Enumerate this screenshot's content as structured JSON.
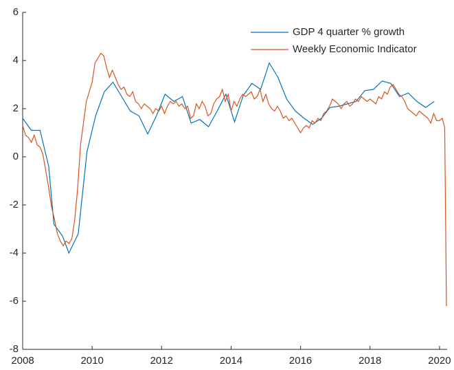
{
  "chart_data": {
    "type": "line",
    "xlim": [
      2008,
      2020.22
    ],
    "xticks": [
      2008,
      2010,
      2012,
      2014,
      2016,
      2018,
      2020
    ],
    "ylim": [
      -8,
      6
    ],
    "yticks": [
      -8,
      -6,
      -4,
      -2,
      0,
      2,
      4,
      6
    ],
    "legend": "upper right",
    "series": [
      {
        "name": "GDP 4 quarter % growth",
        "color": "#0072bd",
        "x": [
          2008,
          2008.25,
          2008.5,
          2008.75,
          2008.9,
          2009.15,
          2009.33,
          2009.6,
          2009.85,
          2010.1,
          2010.35,
          2010.6,
          2010.85,
          2011.1,
          2011.35,
          2011.6,
          2011.85,
          2012.1,
          2012.35,
          2012.6,
          2012.85,
          2013.1,
          2013.35,
          2013.6,
          2013.85,
          2014.1,
          2014.35,
          2014.6,
          2014.85,
          2015.1,
          2015.35,
          2015.6,
          2015.85,
          2016.1,
          2016.35,
          2016.6,
          2016.85,
          2017.1,
          2017.35,
          2017.6,
          2017.85,
          2018.1,
          2018.35,
          2018.6,
          2018.85,
          2019.1,
          2019.35,
          2019.6,
          2019.85
        ],
        "values": [
          1.6,
          1.1,
          1.1,
          -0.4,
          -2.8,
          -3.3,
          -4.0,
          -3.2,
          0.2,
          1.7,
          2.7,
          3.1,
          2.5,
          1.9,
          1.7,
          0.95,
          1.7,
          2.6,
          2.3,
          2.5,
          1.4,
          1.55,
          1.25,
          1.9,
          2.6,
          1.45,
          2.55,
          3.05,
          2.8,
          3.9,
          3.3,
          2.4,
          1.9,
          1.6,
          1.35,
          1.6,
          2.05,
          2.1,
          2.2,
          2.3,
          2.75,
          2.8,
          3.15,
          3.05,
          2.5,
          2.65,
          2.3,
          2.05,
          2.3
        ]
      },
      {
        "name": "Weekly Economic Indicator",
        "color": "#d95319",
        "x": [
          2008,
          2008.083,
          2008.167,
          2008.25,
          2008.333,
          2008.417,
          2008.5,
          2008.583,
          2008.667,
          2008.75,
          2008.833,
          2008.917,
          2009,
          2009.083,
          2009.167,
          2009.25,
          2009.333,
          2009.417,
          2009.5,
          2009.583,
          2009.667,
          2009.75,
          2009.833,
          2009.917,
          2010,
          2010.083,
          2010.167,
          2010.25,
          2010.333,
          2010.417,
          2010.5,
          2010.583,
          2010.667,
          2010.75,
          2010.833,
          2010.917,
          2011,
          2011.083,
          2011.167,
          2011.25,
          2011.333,
          2011.417,
          2011.5,
          2011.583,
          2011.667,
          2011.75,
          2011.833,
          2011.917,
          2012,
          2012.083,
          2012.167,
          2012.25,
          2012.333,
          2012.417,
          2012.5,
          2012.583,
          2012.667,
          2012.75,
          2012.833,
          2012.917,
          2013,
          2013.083,
          2013.167,
          2013.25,
          2013.333,
          2013.417,
          2013.5,
          2013.583,
          2013.667,
          2013.75,
          2013.833,
          2013.917,
          2014,
          2014.083,
          2014.167,
          2014.25,
          2014.333,
          2014.417,
          2014.5,
          2014.583,
          2014.667,
          2014.75,
          2014.833,
          2014.917,
          2015,
          2015.083,
          2015.167,
          2015.25,
          2015.333,
          2015.417,
          2015.5,
          2015.583,
          2015.667,
          2015.75,
          2015.833,
          2015.917,
          2016,
          2016.083,
          2016.167,
          2016.25,
          2016.333,
          2016.417,
          2016.5,
          2016.583,
          2016.667,
          2016.75,
          2016.833,
          2016.917,
          2017,
          2017.083,
          2017.167,
          2017.25,
          2017.333,
          2017.417,
          2017.5,
          2017.583,
          2017.667,
          2017.75,
          2017.833,
          2017.917,
          2018,
          2018.083,
          2018.167,
          2018.25,
          2018.333,
          2018.417,
          2018.5,
          2018.583,
          2018.667,
          2018.75,
          2018.833,
          2018.917,
          2019,
          2019.083,
          2019.167,
          2019.25,
          2019.333,
          2019.417,
          2019.5,
          2019.583,
          2019.667,
          2019.75,
          2019.833,
          2019.917,
          2020,
          2020.08,
          2020.15,
          2020.2
        ],
        "values": [
          1.3,
          0.9,
          0.8,
          0.6,
          0.9,
          0.5,
          0.4,
          0.1,
          -0.6,
          -1.3,
          -2.1,
          -2.6,
          -3.2,
          -3.5,
          -3.7,
          -3.5,
          -3.6,
          -3.4,
          -2.6,
          -1.3,
          0.5,
          1.4,
          2.3,
          2.7,
          3.1,
          3.9,
          4.1,
          4.3,
          4.2,
          3.7,
          3.3,
          3.6,
          3.3,
          3.0,
          2.8,
          2.9,
          2.6,
          2.5,
          2.7,
          2.3,
          2.2,
          2.0,
          2.2,
          2.1,
          2.0,
          1.8,
          2.0,
          1.9,
          2.1,
          1.8,
          2.1,
          2.3,
          2.2,
          2.3,
          2.1,
          2.2,
          2.0,
          2.1,
          1.6,
          1.7,
          2.2,
          2.0,
          2.3,
          2.1,
          1.7,
          1.8,
          2.2,
          2.4,
          2.5,
          2.8,
          2.3,
          2.6,
          1.9,
          2.3,
          2.1,
          2.4,
          2.6,
          2.5,
          2.6,
          2.7,
          2.4,
          2.5,
          2.8,
          2.3,
          2.6,
          2.2,
          2.0,
          1.9,
          2.1,
          1.9,
          1.6,
          1.7,
          1.5,
          1.6,
          1.4,
          1.2,
          1.0,
          1.2,
          1.3,
          1.2,
          1.5,
          1.4,
          1.6,
          1.5,
          1.8,
          1.9,
          2.1,
          2.4,
          2.3,
          2.2,
          2.0,
          2.2,
          2.3,
          2.1,
          2.2,
          2.4,
          2.3,
          2.5,
          2.4,
          2.3,
          2.4,
          2.3,
          2.2,
          2.5,
          2.4,
          2.7,
          2.6,
          2.9,
          3.0,
          2.8,
          2.6,
          2.5,
          2.3,
          2.0,
          1.9,
          1.8,
          1.7,
          1.9,
          1.8,
          1.7,
          1.6,
          1.4,
          1.8,
          1.5,
          1.5,
          1.6,
          1.2,
          -6.2
        ]
      }
    ]
  }
}
